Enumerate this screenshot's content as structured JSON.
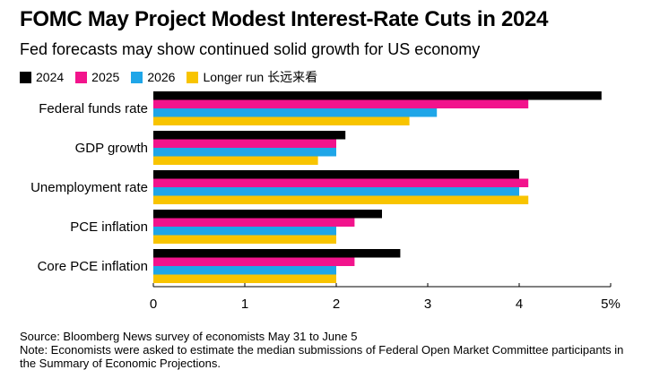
{
  "header": {
    "title": "FOMC May Project Modest Interest-Rate Cuts in 2024",
    "subtitle": "Fed forecasts may show continued solid growth for US economy"
  },
  "footer": {
    "source": "Source: Bloomberg News survey of economists May 31 to June 5",
    "note": "Note: Economists were asked to estimate the median submissions of Federal Open Market Committee participants in the Summary of Economic Projections."
  },
  "chart_data": {
    "type": "bar",
    "orientation": "horizontal",
    "title": "FOMC May Project Modest Interest-Rate Cuts in 2024",
    "subtitle": "Fed forecasts may show continued solid growth for US economy",
    "categories": [
      "Federal funds rate",
      "GDP growth",
      "Unemployment rate",
      "PCE inflation",
      "Core PCE inflation"
    ],
    "series": [
      {
        "name": "2024",
        "color": "#000000",
        "values": [
          4.9,
          2.1,
          4.0,
          2.5,
          2.7
        ]
      },
      {
        "name": "2025",
        "color": "#f2148c",
        "values": [
          4.1,
          2.0,
          4.1,
          2.2,
          2.2
        ]
      },
      {
        "name": "2026",
        "color": "#1fa6e8",
        "values": [
          3.1,
          2.0,
          4.0,
          2.0,
          2.0
        ]
      },
      {
        "name": "Longer run 长远来看",
        "color": "#f8c400",
        "values": [
          2.8,
          1.8,
          4.1,
          2.0,
          2.0
        ]
      }
    ],
    "xlim": [
      0,
      5
    ],
    "xticks": [
      "0",
      "1",
      "2",
      "3",
      "4",
      "5%"
    ],
    "xlabel": "",
    "ylabel": "",
    "legend": "top-left",
    "grid": false
  }
}
